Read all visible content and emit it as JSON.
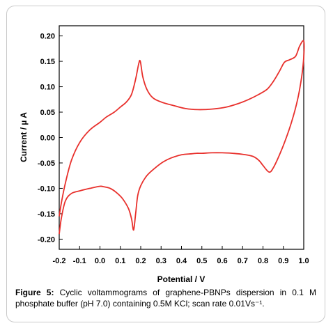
{
  "chart_data": {
    "type": "line",
    "title": "",
    "xlabel": "Potential / V",
    "ylabel": "Current / µ A",
    "xlim": [
      -0.2,
      1.0
    ],
    "ylim": [
      -0.22,
      0.22
    ],
    "x_ticks": [
      "-0.2",
      "-0.1",
      "0.0",
      "0.1",
      "0.2",
      "0.3",
      "0.4",
      "0.5",
      "0.6",
      "0.7",
      "0.8",
      "0.9",
      "1.0"
    ],
    "y_ticks": [
      "0.20",
      "0.15",
      "0.10",
      "0.05",
      "0.00",
      "-0.05",
      "-0.10",
      "-0.15",
      "-0.20"
    ],
    "grid": false,
    "line_color": "#e8302c",
    "series": [
      {
        "values": [
          [
            -0.2,
            -0.19
          ],
          [
            -0.19,
            -0.16
          ],
          [
            -0.17,
            -0.125
          ],
          [
            -0.14,
            -0.11
          ],
          [
            -0.1,
            -0.105
          ],
          [
            -0.05,
            -0.1
          ],
          [
            0.0,
            -0.096
          ],
          [
            0.02,
            -0.097
          ],
          [
            0.05,
            -0.1
          ],
          [
            0.08,
            -0.108
          ],
          [
            0.11,
            -0.12
          ],
          [
            0.14,
            -0.14
          ],
          [
            0.155,
            -0.16
          ],
          [
            0.165,
            -0.182
          ],
          [
            0.175,
            -0.15
          ],
          [
            0.185,
            -0.115
          ],
          [
            0.2,
            -0.095
          ],
          [
            0.23,
            -0.075
          ],
          [
            0.27,
            -0.06
          ],
          [
            0.31,
            -0.048
          ],
          [
            0.35,
            -0.04
          ],
          [
            0.4,
            -0.034
          ],
          [
            0.45,
            -0.032
          ],
          [
            0.475,
            -0.031
          ],
          [
            0.5,
            -0.031
          ],
          [
            0.55,
            -0.03
          ],
          [
            0.6,
            -0.03
          ],
          [
            0.65,
            -0.031
          ],
          [
            0.7,
            -0.033
          ],
          [
            0.75,
            -0.037
          ],
          [
            0.78,
            -0.045
          ],
          [
            0.8,
            -0.055
          ],
          [
            0.83,
            -0.068
          ],
          [
            0.85,
            -0.06
          ],
          [
            0.88,
            -0.035
          ],
          [
            0.91,
            -0.005
          ],
          [
            0.94,
            0.03
          ],
          [
            0.97,
            0.075
          ],
          [
            0.99,
            0.12
          ],
          [
            1.0,
            0.158
          ],
          [
            1.0,
            0.19
          ],
          [
            0.98,
            0.18
          ],
          [
            0.96,
            0.16
          ],
          [
            0.93,
            0.153
          ],
          [
            0.905,
            0.148
          ],
          [
            0.88,
            0.13
          ],
          [
            0.85,
            0.11
          ],
          [
            0.82,
            0.095
          ],
          [
            0.78,
            0.085
          ],
          [
            0.73,
            0.075
          ],
          [
            0.68,
            0.067
          ],
          [
            0.62,
            0.06
          ],
          [
            0.55,
            0.056
          ],
          [
            0.48,
            0.055
          ],
          [
            0.42,
            0.057
          ],
          [
            0.36,
            0.063
          ],
          [
            0.3,
            0.07
          ],
          [
            0.26,
            0.078
          ],
          [
            0.23,
            0.095
          ],
          [
            0.21,
            0.12
          ],
          [
            0.198,
            0.15
          ],
          [
            0.19,
            0.145
          ],
          [
            0.175,
            0.115
          ],
          [
            0.155,
            0.085
          ],
          [
            0.13,
            0.07
          ],
          [
            0.1,
            0.06
          ],
          [
            0.07,
            0.05
          ],
          [
            0.03,
            0.04
          ],
          [
            0.0,
            0.03
          ],
          [
            -0.05,
            0.015
          ],
          [
            -0.1,
            -0.01
          ],
          [
            -0.14,
            -0.045
          ],
          [
            -0.17,
            -0.09
          ],
          [
            -0.19,
            -0.13
          ],
          [
            -0.2,
            -0.155
          ]
        ]
      }
    ]
  },
  "caption": {
    "label": "Figure 5:",
    "text": " Cyclic voltammograms of graphene-PBNPs dispersion in 0.1 M phosphate buffer (pH 7.0) containing 0.5M KCl; scan rate 0.01Vs⁻¹."
  }
}
